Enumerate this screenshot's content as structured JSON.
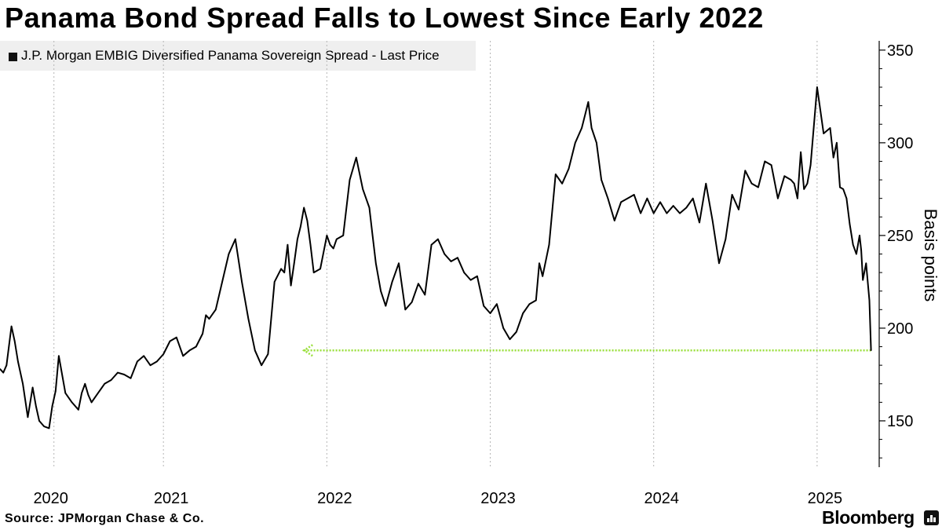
{
  "title": "Panama Bond Spread Falls to Lowest Since Early 2022",
  "source": "Source: JPMorgan Chase & Co.",
  "brand": "Bloomberg",
  "colors": {
    "line": "#000000",
    "annotation": "#9adf3c",
    "grid": "#b5b5b5",
    "legend_bg": "#efefef"
  },
  "chart_data": {
    "type": "line",
    "title": "Panama Bond Spread Falls to Lowest Since Early 2022",
    "ylabel": "Basis points",
    "xlabel": "",
    "ylim": [
      125,
      355
    ],
    "xlim": [
      2020.0,
      2025.38
    ],
    "yticks": [
      150,
      200,
      250,
      300,
      350
    ],
    "ytick_labels": [
      "150",
      "200",
      "250",
      "300",
      "350"
    ],
    "xticks": [
      2020.33,
      2021,
      2022,
      2023,
      2024,
      2025
    ],
    "xtick_labels": [
      "2020",
      "2021",
      "2022",
      "2023",
      "2024",
      "2025"
    ],
    "grid": "vertical dotted",
    "legend_position": "top-left",
    "series": [
      {
        "name": "J.P. Morgan EMBIG Diversified Panama Sovereign Spread - Last Price",
        "x": [
          2020.0,
          2020.02,
          2020.04,
          2020.07,
          2020.09,
          2020.11,
          2020.14,
          2020.17,
          2020.2,
          2020.22,
          2020.24,
          2020.27,
          2020.3,
          2020.32,
          2020.34,
          2020.36,
          2020.4,
          2020.44,
          2020.48,
          2020.5,
          2020.52,
          2020.54,
          2020.56,
          2020.6,
          2020.64,
          2020.68,
          2020.72,
          2020.76,
          2020.8,
          2020.84,
          2020.88,
          2020.92,
          2020.96,
          2021.0,
          2021.04,
          2021.08,
          2021.12,
          2021.16,
          2021.2,
          2021.24,
          2021.26,
          2021.28,
          2021.32,
          2021.36,
          2021.4,
          2021.44,
          2021.48,
          2021.52,
          2021.56,
          2021.6,
          2021.64,
          2021.68,
          2021.72,
          2021.74,
          2021.76,
          2021.78,
          2021.8,
          2021.82,
          2021.84,
          2021.86,
          2021.88,
          2021.9,
          2021.92,
          2021.96,
          2022.0,
          2022.02,
          2022.04,
          2022.06,
          2022.1,
          2022.14,
          2022.18,
          2022.22,
          2022.26,
          2022.28,
          2022.3,
          2022.33,
          2022.36,
          2022.4,
          2022.44,
          2022.48,
          2022.52,
          2022.56,
          2022.6,
          2022.64,
          2022.68,
          2022.72,
          2022.76,
          2022.8,
          2022.84,
          2022.88,
          2022.92,
          2022.96,
          2023.0,
          2023.04,
          2023.08,
          2023.12,
          2023.16,
          2023.2,
          2023.24,
          2023.28,
          2023.3,
          2023.32,
          2023.36,
          2023.4,
          2023.44,
          2023.48,
          2023.52,
          2023.56,
          2023.58,
          2023.6,
          2023.62,
          2023.65,
          2023.68,
          2023.72,
          2023.76,
          2023.8,
          2023.84,
          2023.88,
          2023.92,
          2023.96,
          2024.0,
          2024.04,
          2024.08,
          2024.12,
          2024.16,
          2024.2,
          2024.24,
          2024.28,
          2024.32,
          2024.36,
          2024.4,
          2024.44,
          2024.48,
          2024.52,
          2024.56,
          2024.6,
          2024.64,
          2024.68,
          2024.72,
          2024.76,
          2024.8,
          2024.84,
          2024.86,
          2024.88,
          2024.9,
          2024.92,
          2024.94,
          2024.96,
          2025.0,
          2025.04,
          2025.08,
          2025.1,
          2025.12,
          2025.14,
          2025.16,
          2025.18,
          2025.2,
          2025.22,
          2025.24,
          2025.26,
          2025.27,
          2025.28,
          2025.3,
          2025.32,
          2025.33
        ],
        "values": [
          178,
          176,
          180,
          201,
          193,
          182,
          170,
          152,
          168,
          158,
          150,
          147,
          146,
          158,
          166,
          185,
          165,
          160,
          156,
          165,
          170,
          164,
          160,
          165,
          170,
          172,
          176,
          175,
          173,
          182,
          185,
          180,
          182,
          186,
          193,
          195,
          185,
          188,
          190,
          197,
          207,
          205,
          210,
          225,
          240,
          248,
          225,
          205,
          188,
          180,
          186,
          225,
          232,
          230,
          245,
          223,
          235,
          248,
          255,
          265,
          258,
          245,
          230,
          232,
          250,
          245,
          243,
          248,
          250,
          280,
          292,
          275,
          265,
          250,
          235,
          220,
          212,
          225,
          235,
          210,
          214,
          224,
          218,
          245,
          248,
          240,
          236,
          238,
          230,
          226,
          228,
          212,
          208,
          213,
          200,
          194,
          198,
          208,
          213,
          215,
          235,
          228,
          245,
          283,
          278,
          286,
          300,
          308,
          315,
          322,
          308,
          300,
          280,
          270,
          258,
          268,
          270,
          272,
          262,
          270,
          262,
          268,
          262,
          266,
          262,
          265,
          270,
          257,
          278,
          258,
          235,
          248,
          272,
          264,
          285,
          278,
          276,
          290,
          288,
          270,
          282,
          280,
          278,
          270,
          295,
          275,
          278,
          288,
          330,
          305,
          308,
          292,
          300,
          276,
          275,
          270,
          256,
          245,
          240,
          250,
          242,
          226,
          235,
          215,
          188
        ]
      }
    ],
    "annotations": [
      {
        "type": "arrow",
        "from": {
          "x": 2025.33,
          "y": 188
        },
        "to": {
          "x": 2021.86,
          "y": 188
        },
        "style": "dotted",
        "color": "#9adf3c"
      }
    ]
  }
}
